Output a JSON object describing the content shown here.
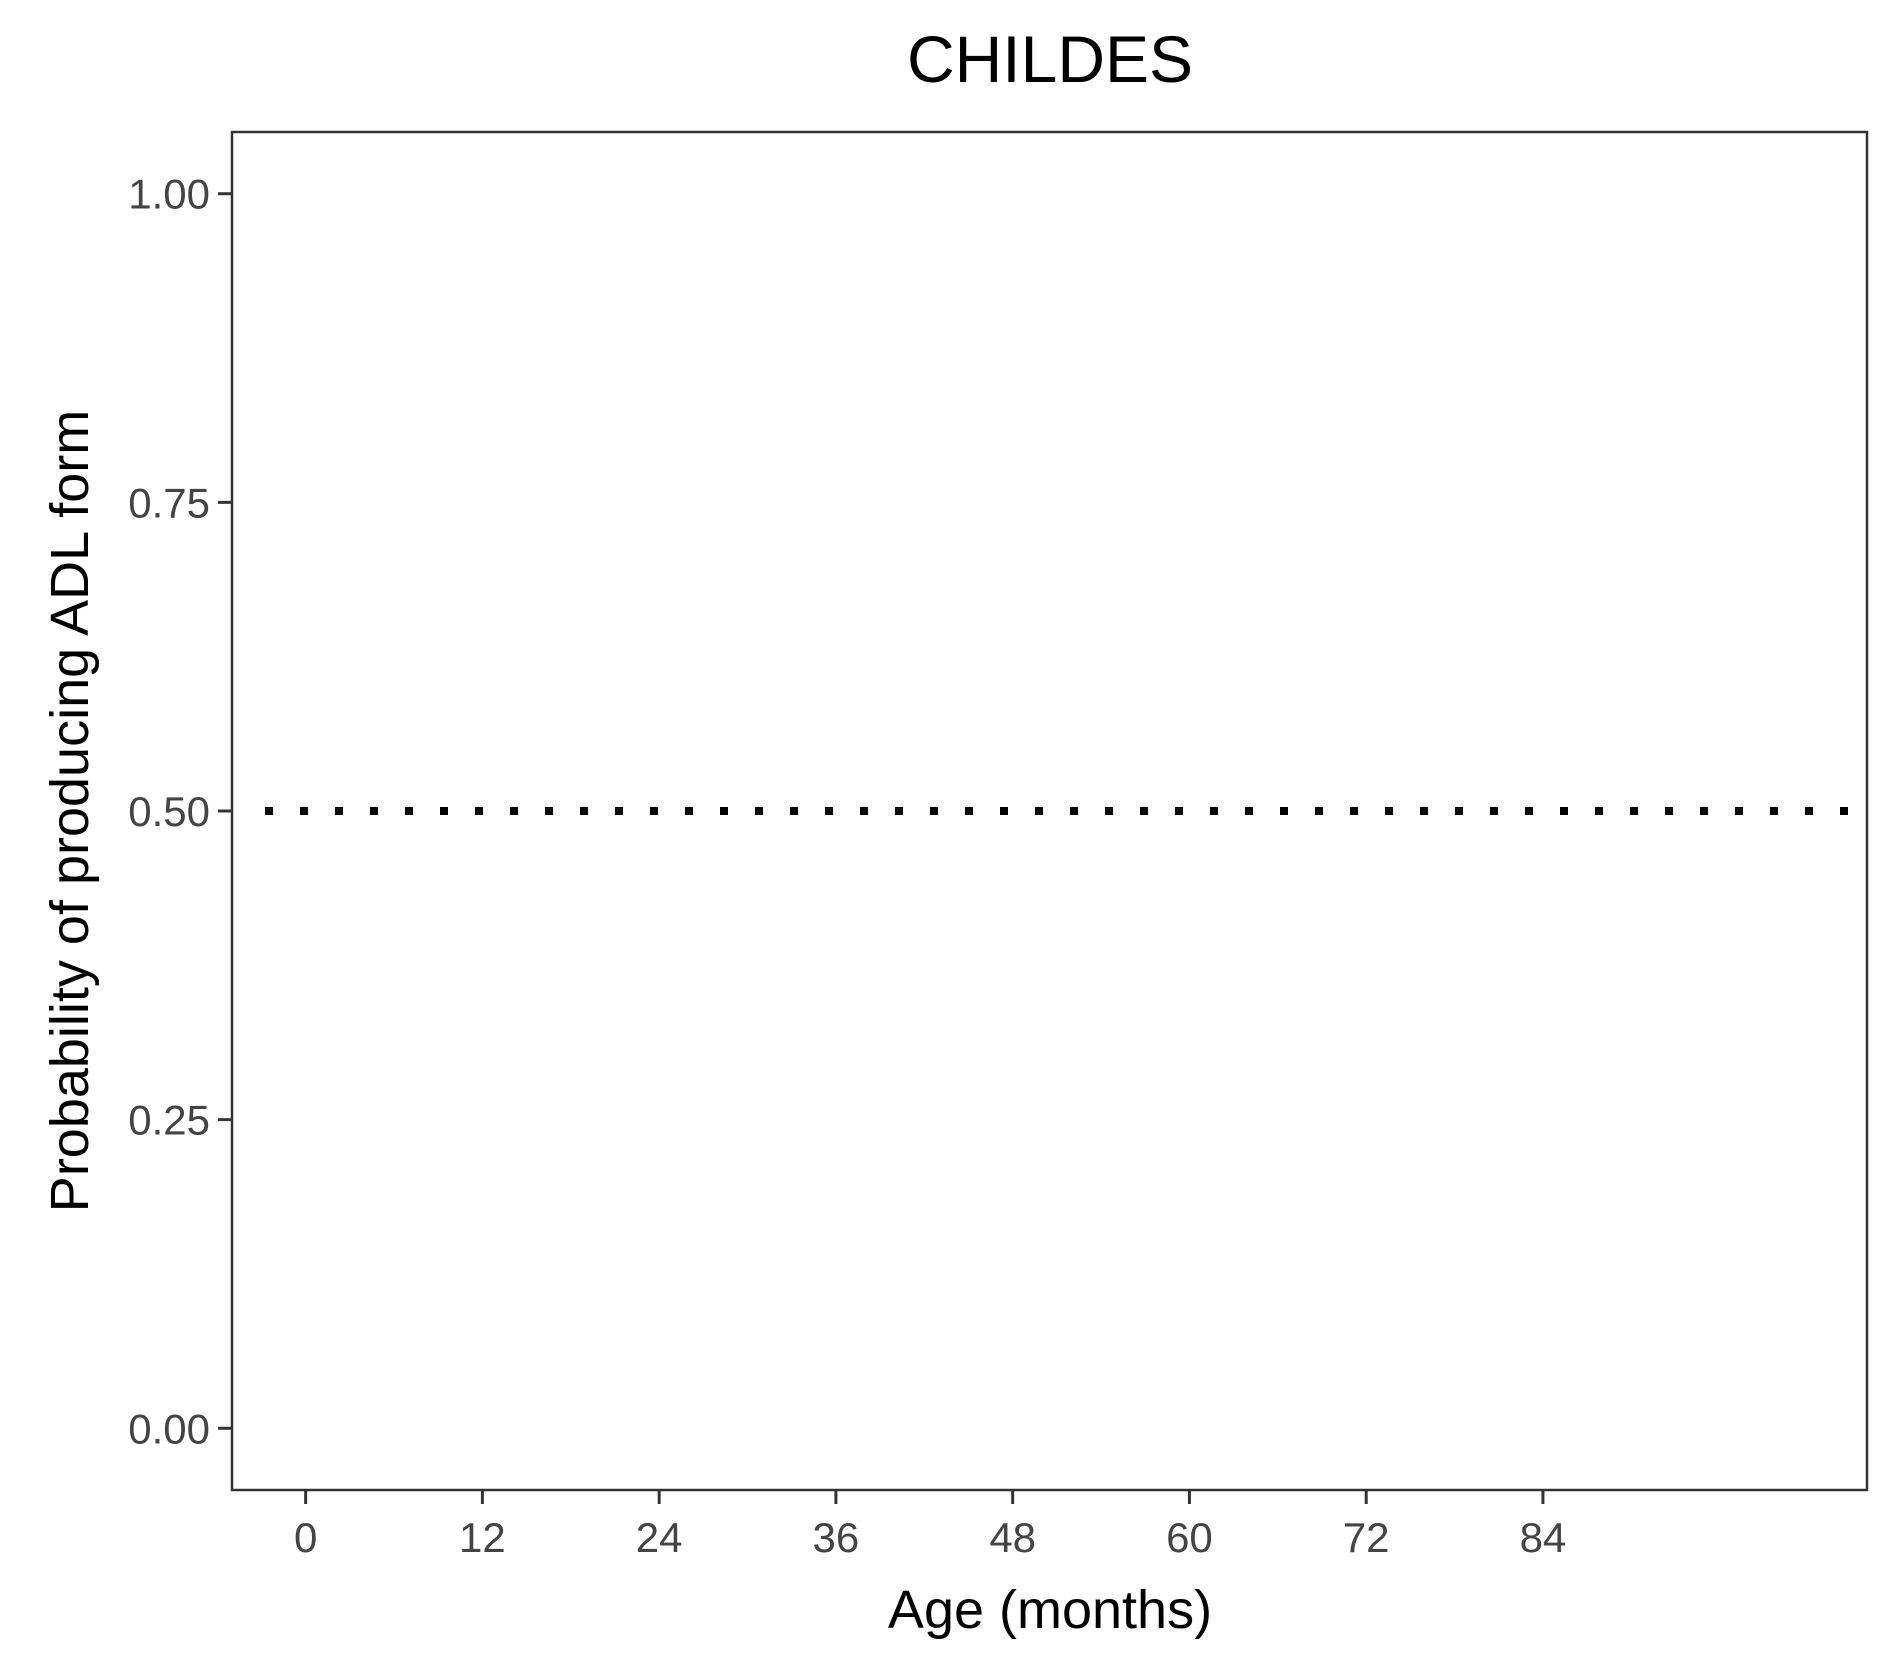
{
  "chart_data": {
    "type": "line",
    "title": "CHILDES",
    "xlabel": "Age (months)",
    "ylabel": "Probability of producing ADL form",
    "xlim": [
      -5,
      106
    ],
    "ylim": [
      -0.05,
      1.05
    ],
    "x_ticks": [
      0,
      12,
      24,
      36,
      48,
      60,
      72,
      84
    ],
    "y_ticks": [
      0.0,
      0.25,
      0.5,
      0.75,
      1.0
    ],
    "x_tick_labels": [
      "0",
      "12",
      "24",
      "36",
      "48",
      "60",
      "72",
      "84"
    ],
    "y_tick_labels": [
      "0.00",
      "0.25",
      "0.50",
      "0.75",
      "1.00"
    ],
    "grid": false,
    "reference_lines": [
      {
        "orientation": "horizontal",
        "y": 0.5,
        "style": "dotted",
        "color": "#000000"
      }
    ],
    "series": []
  }
}
